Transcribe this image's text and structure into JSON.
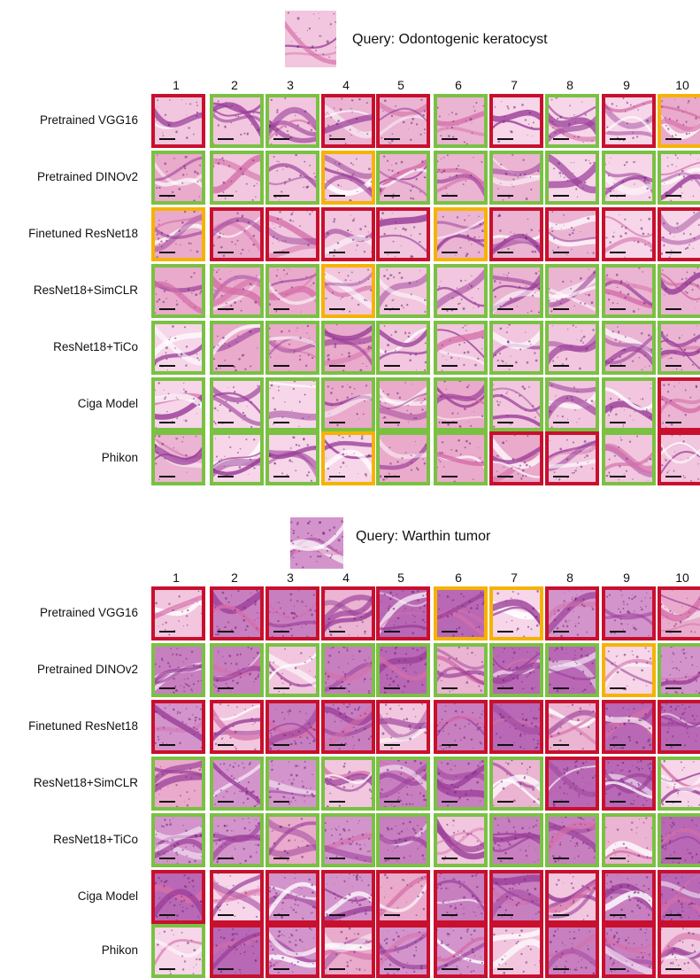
{
  "colors": {
    "relevant": "#7ac143",
    "partial": "#f5b301",
    "irrelevant": "#c8102e"
  },
  "column_numbers": [
    "1",
    "2",
    "3",
    "4",
    "5",
    "6",
    "7",
    "8",
    "9",
    "10"
  ],
  "panels": [
    {
      "query_label": "Query: Odontogenic keratocyst",
      "query_icon": "query-tissue-image",
      "rows": [
        {
          "label": "Pretrained VGG16",
          "status": [
            "r",
            "g",
            "g",
            "r",
            "r",
            "g",
            "r",
            "g",
            "r",
            "y"
          ]
        },
        {
          "label": "Pretrained DINOv2",
          "status": [
            "g",
            "g",
            "g",
            "y",
            "g",
            "g",
            "g",
            "g",
            "g",
            "g"
          ]
        },
        {
          "label": "Finetuned ResNet18",
          "status": [
            "y",
            "r",
            "r",
            "r",
            "r",
            "y",
            "r",
            "r",
            "r",
            "r"
          ]
        },
        {
          "label": "ResNet18+SimCLR",
          "status": [
            "g",
            "g",
            "g",
            "y",
            "g",
            "g",
            "g",
            "g",
            "g",
            "g"
          ]
        },
        {
          "label": "ResNet18+TiCo",
          "status": [
            "g",
            "g",
            "g",
            "g",
            "g",
            "g",
            "g",
            "g",
            "g",
            "g"
          ]
        },
        {
          "label": "Ciga Model",
          "status": [
            "g",
            "g",
            "g",
            "g",
            "g",
            "g",
            "g",
            "g",
            "g",
            "r"
          ]
        },
        {
          "label": "Phikon",
          "status": [
            "g",
            "g",
            "g",
            "y",
            "g",
            "g",
            "r",
            "r",
            "g",
            "r"
          ]
        }
      ]
    },
    {
      "query_label": "Query: Warthin tumor",
      "query_icon": "query-tissue-image",
      "rows": [
        {
          "label": "Pretrained VGG16",
          "status": [
            "r",
            "r",
            "r",
            "r",
            "r",
            "y",
            "y",
            "r",
            "r",
            "r"
          ]
        },
        {
          "label": "Pretrained DINOv2",
          "status": [
            "g",
            "g",
            "g",
            "g",
            "g",
            "g",
            "g",
            "g",
            "y",
            "g"
          ]
        },
        {
          "label": "Finetuned ResNet18",
          "status": [
            "r",
            "r",
            "r",
            "r",
            "r",
            "r",
            "r",
            "r",
            "r",
            "r"
          ]
        },
        {
          "label": "ResNet18+SimCLR",
          "status": [
            "g",
            "g",
            "g",
            "g",
            "g",
            "g",
            "g",
            "r",
            "r",
            "g"
          ]
        },
        {
          "label": "ResNet18+TiCo",
          "status": [
            "g",
            "g",
            "g",
            "g",
            "g",
            "g",
            "g",
            "g",
            "g",
            "g"
          ]
        },
        {
          "label": "Ciga Model",
          "status": [
            "r",
            "r",
            "r",
            "r",
            "r",
            "r",
            "r",
            "r",
            "r",
            "r"
          ]
        },
        {
          "label": "Phikon",
          "status": [
            "g",
            "r",
            "r",
            "r",
            "r",
            "r",
            "r",
            "r",
            "r",
            "r"
          ]
        }
      ]
    }
  ]
}
